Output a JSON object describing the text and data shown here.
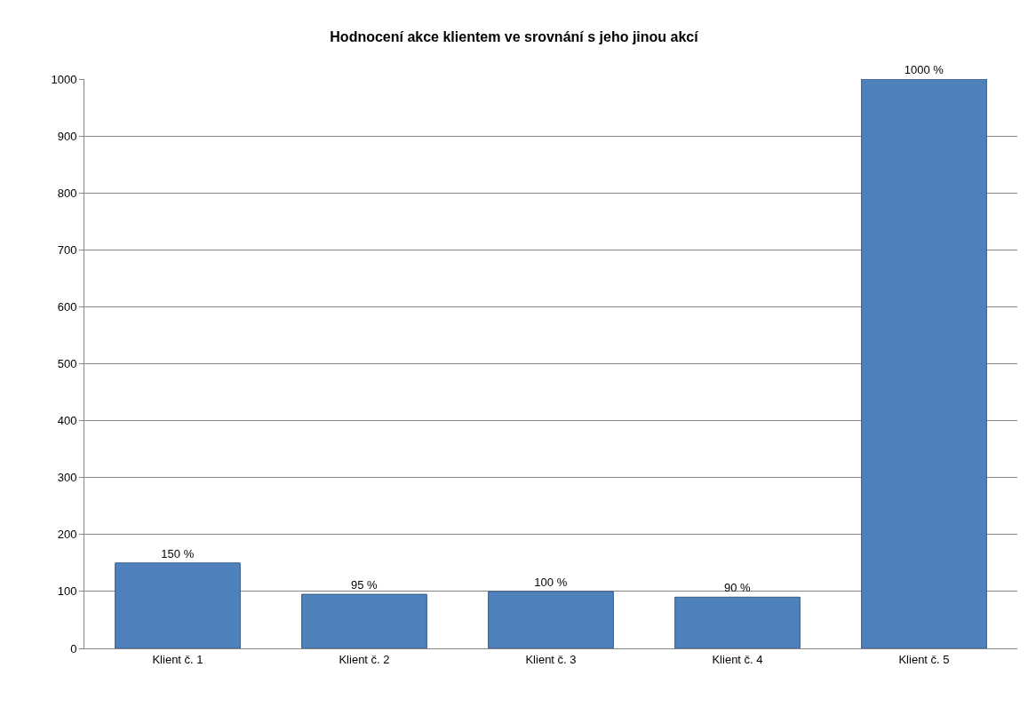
{
  "chart_data": {
    "type": "bar",
    "title": "Hodnocení akce klientem ve srovnání s jeho jinou akcí",
    "categories": [
      "Klient č. 1",
      "Klient č. 2",
      "Klient č. 3",
      "Klient č. 4",
      "Klient č. 5"
    ],
    "values": [
      150,
      95,
      100,
      90,
      1000
    ],
    "value_labels": [
      "150 %",
      "95 %",
      "100 %",
      "90 %",
      "1000 %"
    ],
    "color": "#4f81bd",
    "ylim": [
      0,
      1000
    ],
    "yticks": [
      0,
      100,
      200,
      300,
      400,
      500,
      600,
      700,
      800,
      900,
      1000
    ],
    "grid": "y",
    "legend": false
  }
}
